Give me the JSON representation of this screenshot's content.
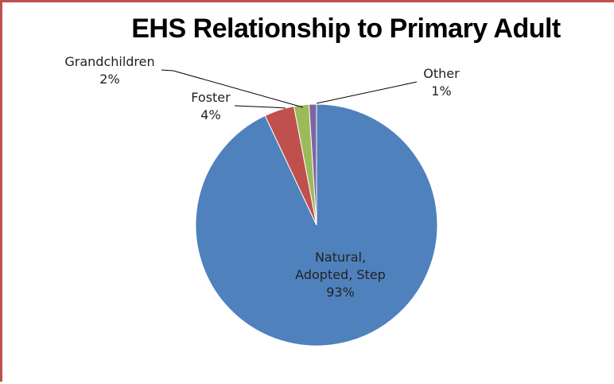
{
  "chart_data": {
    "type": "pie",
    "title": "EHS Relationship to Primary Adult",
    "slices": [
      {
        "label": "Natural, Adopted, Step",
        "label_lines": [
          "Natural,",
          "Adopted, Step"
        ],
        "value_label": "93%",
        "value": 93,
        "color": "#4f81bd"
      },
      {
        "label": "Foster",
        "label_lines": [
          "Foster"
        ],
        "value_label": "4%",
        "value": 4,
        "color": "#c0504d"
      },
      {
        "label": "Grandchildren",
        "label_lines": [
          "Grandchildren"
        ],
        "value_label": "2%",
        "value": 2,
        "color": "#9bbb59"
      },
      {
        "label": "Other",
        "label_lines": [
          "Other"
        ],
        "value_label": "1%",
        "value": 1,
        "color": "#8064a2"
      }
    ],
    "legend": "none"
  }
}
